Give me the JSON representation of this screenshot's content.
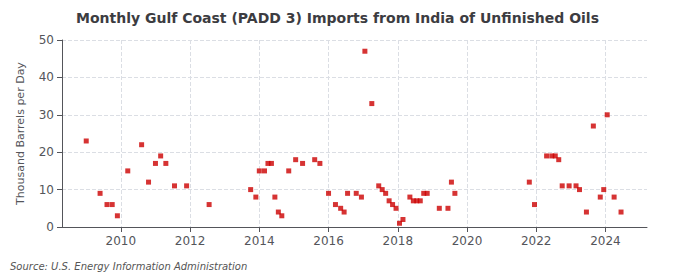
{
  "chart_data": {
    "type": "scatter",
    "title": "Monthly Gulf Coast (PADD 3) Imports from India of Unfinished Oils",
    "ylabel": "Thousand Barrels per Day",
    "annotations": [
      "Source: U.S. Energy Information Administration"
    ],
    "x": [
      2009.0,
      2009.4,
      2009.6,
      2009.75,
      2009.9,
      2010.2,
      2010.6,
      2010.8,
      2011.0,
      2011.15,
      2011.3,
      2011.55,
      2011.9,
      2012.55,
      2013.75,
      2013.9,
      2014.0,
      2014.15,
      2014.25,
      2014.35,
      2014.45,
      2014.55,
      2014.65,
      2014.85,
      2015.05,
      2015.25,
      2015.6,
      2015.75,
      2016.0,
      2016.2,
      2016.35,
      2016.45,
      2016.55,
      2016.8,
      2016.95,
      2017.05,
      2017.25,
      2017.45,
      2017.55,
      2017.65,
      2017.75,
      2017.85,
      2017.95,
      2018.05,
      2018.15,
      2018.35,
      2018.45,
      2018.55,
      2018.65,
      2018.75,
      2018.85,
      2019.2,
      2019.45,
      2019.55,
      2019.65,
      2021.8,
      2021.95,
      2022.3,
      2022.45,
      2022.55,
      2022.65,
      2022.75,
      2022.95,
      2023.15,
      2023.25,
      2023.45,
      2023.65,
      2023.85,
      2023.95,
      2024.05,
      2024.25,
      2024.45
    ],
    "values": [
      23,
      9,
      6,
      6,
      3,
      15,
      22,
      12,
      17,
      19,
      17,
      11,
      11,
      6,
      10,
      8,
      15,
      15,
      17,
      17,
      8,
      4,
      3,
      15,
      18,
      17,
      18,
      17,
      9,
      6,
      5,
      4,
      9,
      9,
      8,
      47,
      33,
      11,
      10,
      9,
      7,
      6,
      5,
      1,
      2,
      8,
      7,
      7,
      7,
      9,
      9,
      5,
      5,
      12,
      9,
      12,
      6,
      19,
      19,
      19,
      18,
      11,
      11,
      11,
      10,
      4,
      27,
      8,
      10,
      30,
      8,
      4
    ],
    "color": "#cc0000",
    "marker": "square",
    "xlim": [
      2008.3,
      2025.2
    ],
    "ylim": [
      0,
      50
    ],
    "xticks": [
      2010,
      2012,
      2014,
      2016,
      2018,
      2020,
      2022,
      2024
    ],
    "yticks": [
      0,
      10,
      20,
      30,
      40,
      50
    ],
    "grid": true
  }
}
